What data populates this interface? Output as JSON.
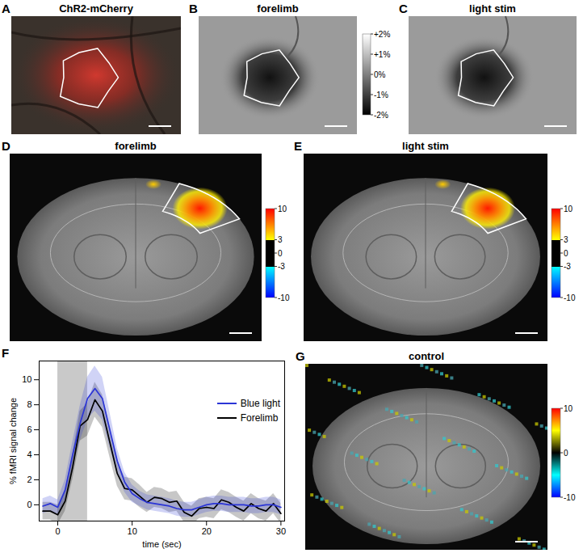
{
  "panels": [
    {
      "label": "A",
      "title": "ChR2-mCherry"
    },
    {
      "label": "B",
      "title": "forelimb",
      "colorbar": {
        "range": [
          -2,
          2
        ],
        "ticks": [
          {
            "value": 2,
            "label": "+2%"
          },
          {
            "value": 1,
            "label": "+1%"
          },
          {
            "value": 0,
            "label": "0%"
          },
          {
            "value": -1,
            "label": "-1%"
          },
          {
            "value": -2,
            "label": "-2%"
          }
        ]
      }
    },
    {
      "label": "C",
      "title": "light stim"
    },
    {
      "label": "D",
      "title": "forelimb",
      "colorbar": {
        "range": [
          -10,
          10
        ],
        "threshold": 3,
        "ticks": [
          10,
          3,
          0,
          -3,
          -10
        ]
      }
    },
    {
      "label": "E",
      "title": "light stim",
      "colorbar": {
        "range": [
          -10,
          10
        ],
        "threshold": 3,
        "ticks": [
          10,
          3,
          0,
          -3,
          -10
        ]
      }
    },
    {
      "label": "G",
      "title": "control",
      "colorbar": {
        "range": [
          -10,
          10
        ],
        "ticks": [
          10,
          0,
          -10
        ]
      }
    }
  ],
  "chart_data": {
    "label": "F",
    "type": "line",
    "x_label": "time (sec)",
    "y_label": "% fMRI signal change",
    "x": [
      -2,
      -1,
      0,
      1,
      2,
      3,
      4,
      5,
      6,
      7,
      8,
      9,
      10,
      11,
      12,
      13,
      14,
      15,
      16,
      17,
      18,
      19,
      20,
      21,
      22,
      23,
      24,
      25,
      26,
      27,
      28,
      29,
      30
    ],
    "stimulus": [
      0,
      4
    ],
    "series": [
      {
        "name": "Blue light",
        "color": "#2b35d6",
        "values": [
          -0.1,
          0.1,
          -0.2,
          1.2,
          4.0,
          6.5,
          8.5,
          9.3,
          8.5,
          6.0,
          3.5,
          1.8,
          0.9,
          0.5,
          0.2,
          0.1,
          0.0,
          -0.1,
          -0.3,
          -0.4,
          -0.4,
          -0.2,
          0.0,
          0.1,
          0.1,
          0.0,
          0.0,
          0.0,
          -0.1,
          -0.1,
          0.0,
          0.0,
          -0.2
        ],
        "error": [
          0.6,
          0.6,
          0.6,
          0.8,
          1.0,
          1.4,
          1.7,
          1.8,
          1.7,
          1.4,
          1.0,
          0.8,
          0.7,
          0.6,
          0.6,
          0.6,
          0.6,
          0.6,
          0.6,
          0.6,
          0.6,
          0.6,
          0.6,
          0.6,
          0.6,
          0.6,
          0.6,
          0.6,
          0.6,
          0.6,
          0.6,
          0.6,
          0.6
        ]
      },
      {
        "name": "Forelimb",
        "color": "#000000",
        "values": [
          -0.5,
          -0.5,
          -0.8,
          0.3,
          3.0,
          6.3,
          6.8,
          8.4,
          7.5,
          5.0,
          2.5,
          1.3,
          1.2,
          0.7,
          0.2,
          0.6,
          0.5,
          0.2,
          0.3,
          -0.6,
          -0.9,
          -0.3,
          -0.2,
          -0.3,
          0.4,
          0.2,
          -0.2,
          -0.5,
          0.1,
          -0.3,
          -0.5,
          0.1,
          -0.7
        ],
        "error": [
          0.7,
          0.7,
          0.8,
          0.8,
          1.0,
          1.2,
          1.3,
          1.4,
          1.3,
          1.2,
          1.0,
          0.9,
          0.9,
          0.9,
          0.8,
          0.8,
          0.8,
          0.8,
          0.8,
          0.8,
          0.8,
          0.8,
          0.8,
          0.8,
          0.8,
          0.8,
          0.8,
          0.8,
          0.8,
          0.8,
          0.8,
          0.8,
          0.8
        ]
      }
    ],
    "xlim": [
      -2.5,
      30.5
    ],
    "xticks": [
      0,
      10,
      20,
      30
    ],
    "ylim": [
      -1.3,
      11.5
    ],
    "yticks": [
      0,
      2,
      4,
      6,
      8,
      10
    ],
    "legend": "upper right"
  }
}
